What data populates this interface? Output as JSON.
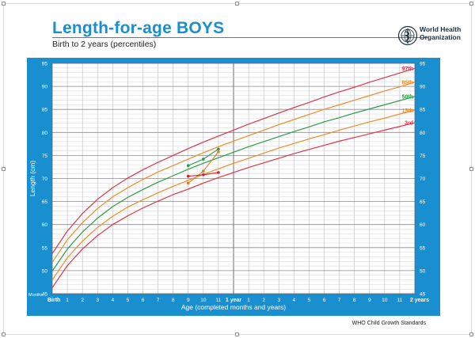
{
  "header": {
    "title": "Length-for-age BOYS",
    "subtitle": "Birth to 2 years (percentiles)",
    "org_name_line1": "World Health",
    "org_name_line2": "Organization"
  },
  "footer": {
    "text": "WHO Child Growth Standards"
  },
  "colors": {
    "blue_frame": "#1a8fd0",
    "p97": "#e0334a",
    "p85": "#f08a2a",
    "p50": "#2a9a4a",
    "p15": "#f08a2a",
    "p3": "#e0334a",
    "green_points": "#2a9a4a",
    "orange_points": "#e87a22",
    "red_points": "#e01c2c"
  },
  "chart_data": {
    "type": "line",
    "title": "Length-for-age BOYS",
    "xlabel": "Age (completed months and years)",
    "ylabel": "Length (cm)",
    "xlim": [
      0,
      24
    ],
    "ylim": [
      45,
      95
    ],
    "y_ticks": [
      45,
      50,
      55,
      60,
      65,
      70,
      75,
      80,
      85,
      90,
      95
    ],
    "x_corner_label": "Months",
    "x_tick_labels": [
      "Birth",
      "1",
      "2",
      "3",
      "4",
      "5",
      "6",
      "7",
      "8",
      "9",
      "10",
      "11",
      "1 year",
      "1",
      "2",
      "3",
      "4",
      "5",
      "6",
      "7",
      "8",
      "9",
      "10",
      "11",
      "2 years"
    ],
    "grid": true,
    "series": [
      {
        "name": "97th",
        "x": [
          0,
          1,
          2,
          3,
          4,
          5,
          6,
          7,
          8,
          9,
          10,
          11,
          12,
          13,
          14,
          15,
          16,
          17,
          18,
          19,
          20,
          21,
          22,
          23,
          24
        ],
        "values": [
          53.7,
          58.6,
          62.4,
          65.5,
          68.0,
          70.1,
          71.9,
          73.5,
          75.0,
          76.5,
          77.9,
          79.2,
          80.5,
          81.8,
          83.0,
          84.2,
          85.4,
          86.5,
          87.7,
          88.8,
          89.8,
          90.9,
          91.9,
          92.9,
          93.9
        ]
      },
      {
        "name": "85th",
        "x": [
          0,
          1,
          2,
          3,
          4,
          5,
          6,
          7,
          8,
          9,
          10,
          11,
          12,
          13,
          14,
          15,
          16,
          17,
          18,
          19,
          20,
          21,
          22,
          23,
          24
        ],
        "values": [
          51.8,
          56.7,
          60.4,
          63.5,
          66.0,
          68.0,
          69.8,
          71.4,
          72.8,
          74.2,
          75.6,
          76.9,
          78.1,
          79.3,
          80.5,
          81.7,
          82.8,
          83.9,
          85.0,
          86.0,
          87.0,
          88.0,
          89.0,
          89.9,
          90.9
        ]
      },
      {
        "name": "50th",
        "x": [
          0,
          1,
          2,
          3,
          4,
          5,
          6,
          7,
          8,
          9,
          10,
          11,
          12,
          13,
          14,
          15,
          16,
          17,
          18,
          19,
          20,
          21,
          22,
          23,
          24
        ],
        "values": [
          49.9,
          54.7,
          58.4,
          61.4,
          63.9,
          65.9,
          67.6,
          69.2,
          70.6,
          72.0,
          73.3,
          74.5,
          75.7,
          76.9,
          78.0,
          79.1,
          80.2,
          81.2,
          82.3,
          83.2,
          84.2,
          85.1,
          86.0,
          86.9,
          87.8
        ]
      },
      {
        "name": "15th",
        "x": [
          0,
          1,
          2,
          3,
          4,
          5,
          6,
          7,
          8,
          9,
          10,
          11,
          12,
          13,
          14,
          15,
          16,
          17,
          18,
          19,
          20,
          21,
          22,
          23,
          24
        ],
        "values": [
          48.0,
          52.8,
          56.4,
          59.4,
          61.8,
          63.8,
          65.4,
          66.9,
          68.3,
          69.6,
          70.9,
          72.1,
          73.3,
          74.4,
          75.5,
          76.6,
          77.6,
          78.6,
          79.5,
          80.5,
          81.4,
          82.3,
          83.1,
          84.0,
          84.8
        ]
      },
      {
        "name": "3rd",
        "x": [
          0,
          1,
          2,
          3,
          4,
          5,
          6,
          7,
          8,
          9,
          10,
          11,
          12,
          13,
          14,
          15,
          16,
          17,
          18,
          19,
          20,
          21,
          22,
          23,
          24
        ],
        "values": [
          46.3,
          51.1,
          54.7,
          57.6,
          60.0,
          61.9,
          63.6,
          65.1,
          66.5,
          67.7,
          69.0,
          70.2,
          71.3,
          72.4,
          73.4,
          74.4,
          75.4,
          76.3,
          77.2,
          78.1,
          78.9,
          79.7,
          80.5,
          81.3,
          82.1
        ]
      }
    ],
    "plotted_points": [
      {
        "color": "green_points",
        "x": [
          9,
          10,
          11
        ],
        "values": [
          72.8,
          74.2,
          76.4
        ]
      },
      {
        "color": "orange_points",
        "x": [
          9,
          10,
          11
        ],
        "values": [
          69.0,
          71.6,
          75.8
        ]
      },
      {
        "color": "red_points",
        "x": [
          9,
          10,
          11
        ],
        "values": [
          70.5,
          70.8,
          71.3
        ]
      }
    ]
  }
}
